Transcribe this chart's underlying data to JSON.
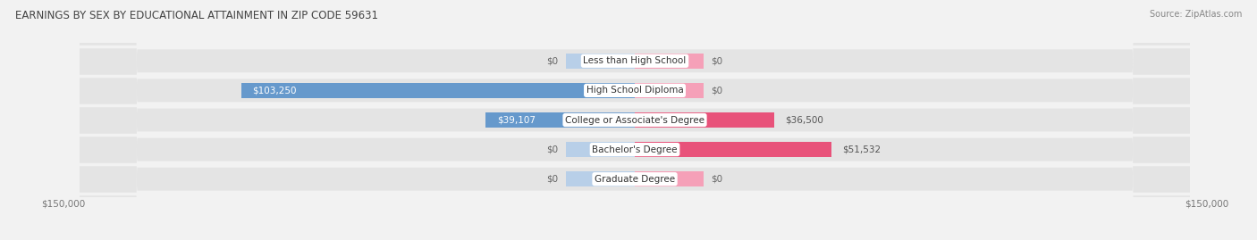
{
  "title": "EARNINGS BY SEX BY EDUCATIONAL ATTAINMENT IN ZIP CODE 59631",
  "source": "Source: ZipAtlas.com",
  "categories": [
    "Less than High School",
    "High School Diploma",
    "College or Associate's Degree",
    "Bachelor's Degree",
    "Graduate Degree"
  ],
  "male_values": [
    0,
    103250,
    39107,
    0,
    0
  ],
  "female_values": [
    0,
    0,
    36500,
    51532,
    0
  ],
  "male_color_strong": "#6699cc",
  "male_color_weak": "#b8cfe8",
  "female_color_strong": "#e8527a",
  "female_color_weak": "#f5a0b8",
  "max_value": 150000,
  "bg_color": "#f2f2f2",
  "row_bg_color": "#e4e4e4",
  "bar_height": 0.52,
  "title_fontsize": 8.5,
  "source_fontsize": 7,
  "label_fontsize": 7.5,
  "category_fontsize": 7.5,
  "tick_fontsize": 7.5,
  "axis_label_left": "$150,000",
  "axis_label_right": "$150,000"
}
